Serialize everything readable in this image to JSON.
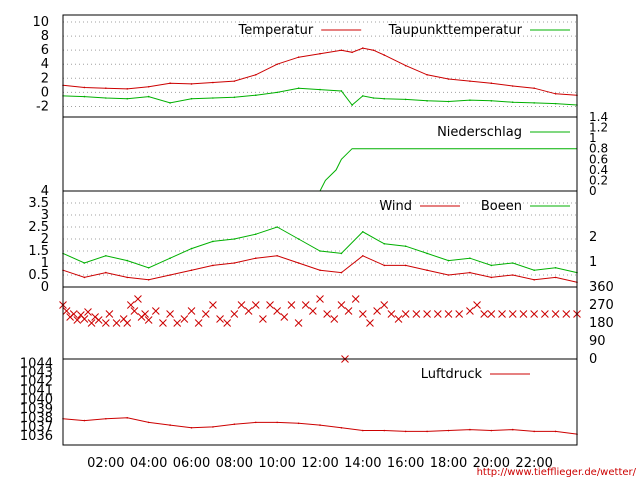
{
  "colors": {
    "red": "#cc0000",
    "green": "#00b000",
    "grid": "#a0a0a0"
  },
  "footer_url": "http://www.tiefflieger.de/wetter/",
  "chart_data": [
    {
      "type": "line",
      "panel": "temperature",
      "ylim": [
        -3.5,
        11
      ],
      "yticks": [
        "10",
        "8",
        "6",
        "4",
        "2",
        "0",
        "-2"
      ],
      "grid": true,
      "legend_position": "top-right",
      "x": [
        "00:00",
        "01:00",
        "02:00",
        "03:00",
        "04:00",
        "05:00",
        "06:00",
        "07:00",
        "08:00",
        "09:00",
        "10:00",
        "11:00",
        "12:00",
        "13:00",
        "13:30",
        "14:00",
        "14:30",
        "15:00",
        "16:00",
        "17:00",
        "18:00",
        "19:00",
        "20:00",
        "21:00",
        "22:00",
        "23:00",
        "24:00"
      ],
      "series": [
        {
          "name": "Temperatur",
          "color": "#cc0000",
          "values": [
            1.0,
            0.7,
            0.6,
            0.5,
            0.8,
            1.3,
            1.2,
            1.4,
            1.6,
            2.5,
            4.0,
            5.0,
            5.5,
            6.0,
            5.7,
            6.3,
            6.0,
            5.3,
            3.8,
            2.5,
            1.9,
            1.6,
            1.3,
            0.9,
            0.6,
            -0.2,
            -0.4
          ]
        },
        {
          "name": "Taupunkttemperatur",
          "color": "#00b000",
          "values": [
            -0.5,
            -0.6,
            -0.8,
            -0.9,
            -0.6,
            -1.5,
            -0.9,
            -0.8,
            -0.7,
            -0.4,
            0.0,
            0.6,
            0.4,
            0.2,
            -1.8,
            -0.5,
            -0.8,
            -0.9,
            -1.0,
            -1.2,
            -1.3,
            -1.1,
            -1.2,
            -1.4,
            -1.5,
            -1.6,
            -1.8
          ]
        }
      ]
    },
    {
      "type": "line",
      "panel": "precipitation",
      "ylim": [
        0,
        1.4
      ],
      "yticks": [
        "1.4",
        "1.2",
        "1",
        "0.8",
        "0.6",
        "0.4",
        "0.2",
        "0"
      ],
      "legend_position": "top-right",
      "series": [
        {
          "name": "Niederschlag",
          "color": "#00b000",
          "points": [
            [
              "00:00",
              0
            ],
            [
              "12:00",
              0
            ],
            [
              "12:15",
              0.2
            ],
            [
              "12:45",
              0.4
            ],
            [
              "13:00",
              0.6
            ],
            [
              "13:30",
              0.8
            ],
            [
              "14:00",
              0.8
            ],
            [
              "24:00",
              0.8
            ]
          ]
        }
      ]
    },
    {
      "type": "line",
      "panel": "wind",
      "ylim": [
        0,
        4
      ],
      "yticks": [
        "4",
        "3.5",
        "3",
        "2.5",
        "2",
        "1.5",
        "1",
        "0.5",
        "0"
      ],
      "y2ticks": [
        "2",
        "1"
      ],
      "grid": true,
      "legend_position": "top-right",
      "x": [
        "00:00",
        "01:00",
        "02:00",
        "03:00",
        "04:00",
        "05:00",
        "06:00",
        "07:00",
        "08:00",
        "09:00",
        "10:00",
        "11:00",
        "12:00",
        "13:00",
        "14:00",
        "15:00",
        "16:00",
        "17:00",
        "18:00",
        "19:00",
        "20:00",
        "21:00",
        "22:00",
        "23:00",
        "24:00"
      ],
      "series": [
        {
          "name": "Wind",
          "color": "#cc0000",
          "values": [
            0.7,
            0.4,
            0.6,
            0.4,
            0.3,
            0.5,
            0.7,
            0.9,
            1.0,
            1.2,
            1.3,
            1.0,
            0.7,
            0.6,
            1.3,
            0.9,
            0.9,
            0.7,
            0.5,
            0.6,
            0.4,
            0.5,
            0.3,
            0.4,
            0.2
          ]
        },
        {
          "name": "Boeen",
          "color": "#00b000",
          "values": [
            1.4,
            1.0,
            1.3,
            1.1,
            0.8,
            1.2,
            1.6,
            1.9,
            2.0,
            2.2,
            2.5,
            2.0,
            1.5,
            1.4,
            2.3,
            1.8,
            1.7,
            1.4,
            1.1,
            1.2,
            0.9,
            1.0,
            0.7,
            0.8,
            0.6
          ]
        }
      ]
    },
    {
      "type": "scatter",
      "panel": "wind-direction",
      "ylim": [
        0,
        360
      ],
      "y2ticks": [
        "360",
        "270",
        "180",
        "90",
        "0"
      ],
      "series": [
        {
          "color": "#cc0000",
          "points": [
            [
              "00:00",
              270
            ],
            [
              "00:10",
              240
            ],
            [
              "00:20",
              210
            ],
            [
              "00:30",
              225
            ],
            [
              "00:40",
              195
            ],
            [
              "00:50",
              220
            ],
            [
              "01:00",
              200
            ],
            [
              "01:10",
              235
            ],
            [
              "01:20",
              180
            ],
            [
              "01:30",
              210
            ],
            [
              "01:40",
              195
            ],
            [
              "02:00",
              180
            ],
            [
              "02:10",
              225
            ],
            [
              "02:30",
              180
            ],
            [
              "02:50",
              200
            ],
            [
              "03:00",
              180
            ],
            [
              "03:10",
              270
            ],
            [
              "03:20",
              240
            ],
            [
              "03:30",
              300
            ],
            [
              "03:40",
              210
            ],
            [
              "03:50",
              225
            ],
            [
              "04:00",
              195
            ],
            [
              "04:20",
              240
            ],
            [
              "04:40",
              180
            ],
            [
              "05:00",
              225
            ],
            [
              "05:20",
              180
            ],
            [
              "05:40",
              200
            ],
            [
              "06:00",
              240
            ],
            [
              "06:20",
              180
            ],
            [
              "06:40",
              225
            ],
            [
              "07:00",
              270
            ],
            [
              "07:20",
              200
            ],
            [
              "07:40",
              180
            ],
            [
              "08:00",
              225
            ],
            [
              "08:20",
              270
            ],
            [
              "08:40",
              240
            ],
            [
              "09:00",
              270
            ],
            [
              "09:20",
              200
            ],
            [
              "09:40",
              270
            ],
            [
              "10:00",
              240
            ],
            [
              "10:20",
              210
            ],
            [
              "10:40",
              270
            ],
            [
              "11:00",
              180
            ],
            [
              "11:20",
              270
            ],
            [
              "11:40",
              240
            ],
            [
              "12:00",
              300
            ],
            [
              "12:20",
              225
            ],
            [
              "12:40",
              200
            ],
            [
              "13:00",
              270
            ],
            [
              "13:10",
              0
            ],
            [
              "13:20",
              240
            ],
            [
              "13:40",
              300
            ],
            [
              "14:00",
              225
            ],
            [
              "14:20",
              180
            ],
            [
              "14:40",
              240
            ],
            [
              "15:00",
              270
            ],
            [
              "15:20",
              225
            ],
            [
              "15:40",
              200
            ],
            [
              "16:00",
              225
            ],
            [
              "16:30",
              225
            ],
            [
              "17:00",
              225
            ],
            [
              "17:30",
              225
            ],
            [
              "18:00",
              225
            ],
            [
              "18:30",
              225
            ],
            [
              "19:00",
              240
            ],
            [
              "19:20",
              270
            ],
            [
              "19:40",
              225
            ],
            [
              "20:00",
              225
            ],
            [
              "20:30",
              225
            ],
            [
              "21:00",
              225
            ],
            [
              "21:30",
              225
            ],
            [
              "22:00",
              225
            ],
            [
              "22:30",
              225
            ],
            [
              "23:00",
              225
            ],
            [
              "23:30",
              225
            ],
            [
              "24:00",
              225
            ]
          ]
        }
      ]
    },
    {
      "type": "line",
      "panel": "pressure",
      "ylim": [
        1035,
        1044.5
      ],
      "yticks": [
        "1044",
        "1043",
        "1042",
        "1041",
        "1040",
        "1039",
        "1038",
        "1037",
        "1036"
      ],
      "xticks": [
        "02:00",
        "04:00",
        "06:00",
        "08:00",
        "10:00",
        "12:00",
        "14:00",
        "16:00",
        "18:00",
        "20:00",
        "22:00"
      ],
      "legend_position": "top-right",
      "x": [
        "00:00",
        "01:00",
        "02:00",
        "03:00",
        "04:00",
        "05:00",
        "06:00",
        "07:00",
        "08:00",
        "09:00",
        "10:00",
        "11:00",
        "12:00",
        "13:00",
        "14:00",
        "15:00",
        "16:00",
        "17:00",
        "18:00",
        "19:00",
        "20:00",
        "21:00",
        "22:00",
        "23:00",
        "24:00"
      ],
      "series": [
        {
          "name": "Luftdruck",
          "color": "#cc0000",
          "values": [
            1037.9,
            1037.7,
            1037.9,
            1038.0,
            1037.5,
            1037.2,
            1036.9,
            1037.0,
            1037.3,
            1037.5,
            1037.5,
            1037.4,
            1037.2,
            1036.9,
            1036.6,
            1036.6,
            1036.5,
            1036.5,
            1036.6,
            1036.7,
            1036.6,
            1036.7,
            1036.5,
            1036.5,
            1036.2
          ]
        }
      ]
    }
  ]
}
